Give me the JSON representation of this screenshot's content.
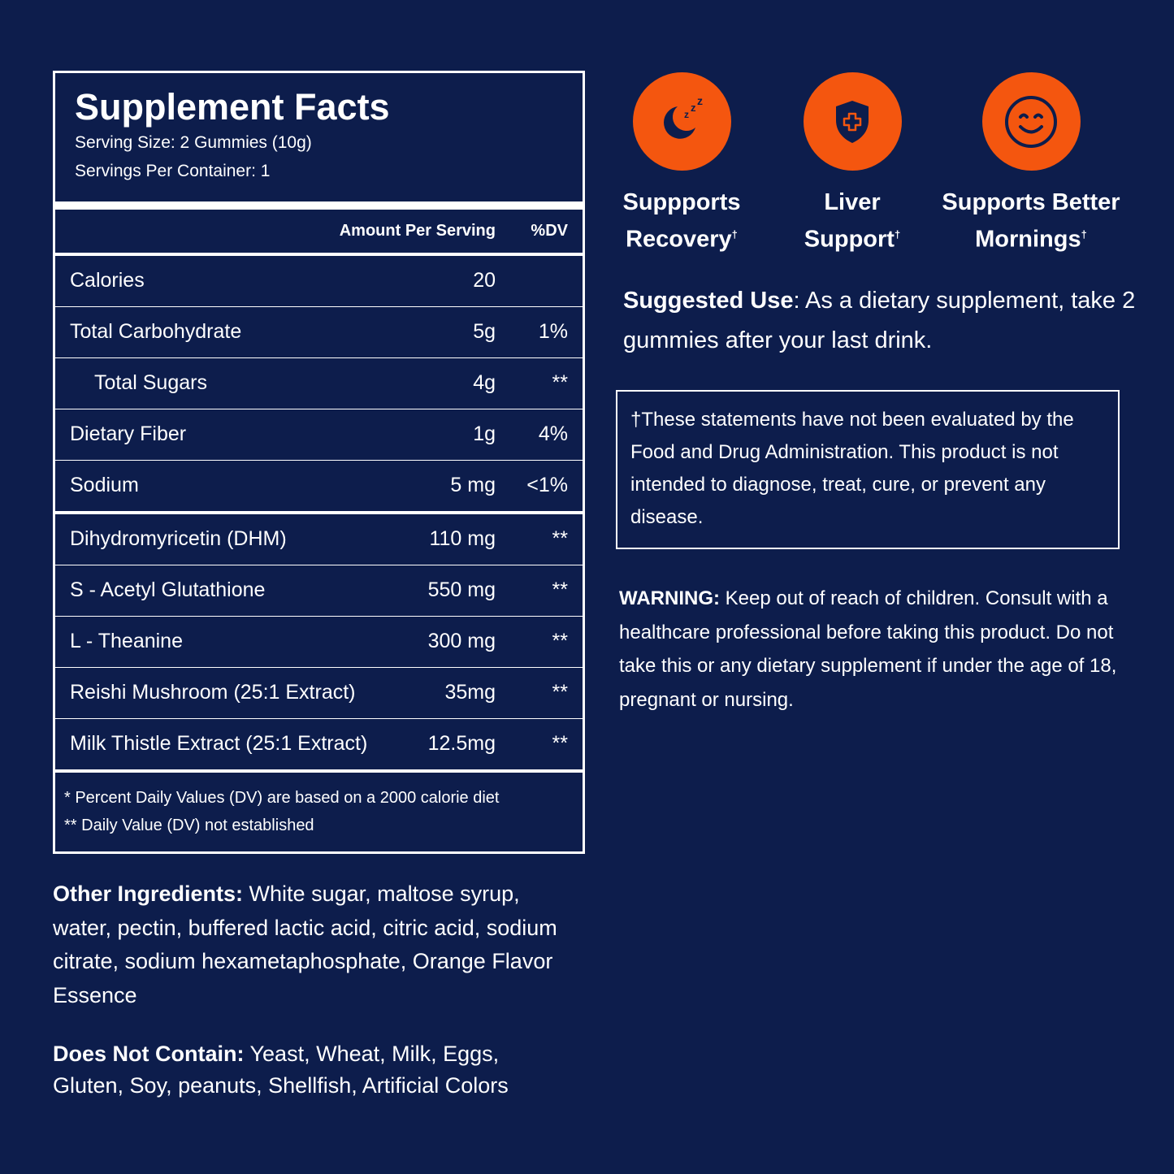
{
  "facts": {
    "title": "Supplement Facts",
    "serving_size": "Serving Size: 2 Gummies (10g)",
    "servings_per_container": "Servings Per Container: 1",
    "col_amount": "Amount Per Serving",
    "col_dv": "%DV",
    "rows": [
      {
        "name": "Calories",
        "amount": "20",
        "dv": ""
      },
      {
        "name": "Total Carbohydrate",
        "amount": "5g",
        "dv": "1%"
      },
      {
        "name": "Total Sugars",
        "amount": "4g",
        "dv": "**"
      },
      {
        "name": "Dietary Fiber",
        "amount": "1g",
        "dv": "4%"
      },
      {
        "name": "Sodium",
        "amount": "5 mg",
        "dv": "<1%"
      },
      {
        "name": "Dihydromyricetin (DHM)",
        "amount": "110 mg",
        "dv": "**"
      },
      {
        "name": "S - Acetyl Glutathione",
        "amount": "550 mg",
        "dv": "**"
      },
      {
        "name": "L - Theanine",
        "amount": "300 mg",
        "dv": "**"
      },
      {
        "name": "Reishi Mushroom (25:1 Extract)",
        "amount": "35mg",
        "dv": "**"
      },
      {
        "name": "Milk Thistle Extract (25:1 Extract)",
        "amount": "12.5mg",
        "dv": "**"
      }
    ],
    "footnote_1": "* Percent Daily Values (DV) are based on a 2000 calorie diet",
    "footnote_2": "** Daily Value (DV) not established"
  },
  "ingredients": {
    "label": "Other Ingredients:",
    "text": "White sugar, maltose syrup, water, pectin, buffered lactic acid, citric acid, sodium citrate, sodium hexametaphosphate, Orange Flavor Essence"
  },
  "does_not_contain": {
    "label": "Does Not Contain:",
    "text": "Yeast, Wheat, Milk, Eggs, Gluten, Soy, peanuts, Shellfish, Artificial Colors"
  },
  "benefits": [
    {
      "icon": "moon-sleep-icon",
      "line1": "Suppports",
      "line2": "Recovery",
      "mark": "†"
    },
    {
      "icon": "shield-cross-icon",
      "line1": "Liver",
      "line2": "Support",
      "mark": "†"
    },
    {
      "icon": "smiley-icon",
      "line1": "Supports Better",
      "line2": "Mornings",
      "mark": "†"
    }
  ],
  "suggested": {
    "label": "Suggested Use",
    "sep": ": ",
    "text": "As a dietary supplement, take 2 gummies after your last drink."
  },
  "disclaimer": "†These statements have not been evaluated by the Food and Drug Administration. This product is not intended to diagnose, treat, cure, or prevent any disease.",
  "warning": {
    "label": "WARNING:",
    "text": "Keep out of reach of children. Consult with a healthcare professional before taking this product. Do not take this or any dietary supplement if under the age of 18, pregnant or nursing."
  },
  "colors": {
    "background": "#0d1d4c",
    "accent": "#f4560f",
    "text": "#ffffff"
  }
}
